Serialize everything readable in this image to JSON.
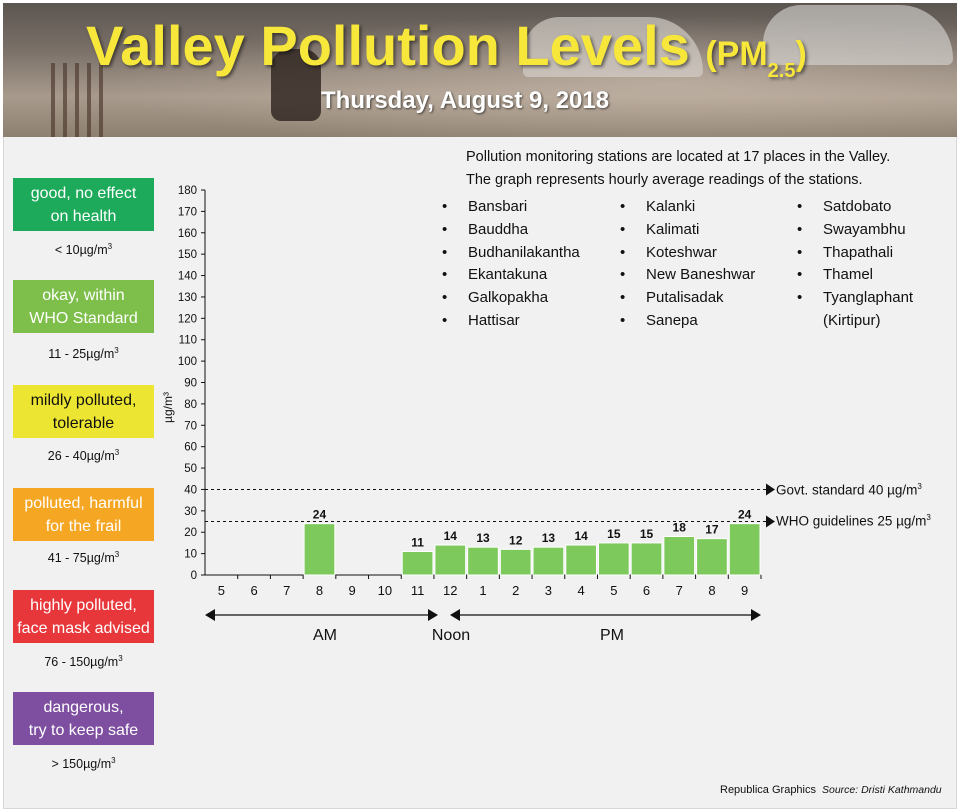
{
  "header": {
    "title": "Valley Pollution Levels",
    "pm_label": "(PM",
    "pm_sub": "2.5",
    "pm_close": ")",
    "date": "Thursday, August 9, 2018"
  },
  "legend": [
    {
      "label_line1": "good, no effect",
      "label_line2": "on health",
      "range": "< 10µg/m",
      "range_sup": "3",
      "color": "#1daa5b"
    },
    {
      "label_line1": "okay, within",
      "label_line2": "WHO Standard",
      "range": "11 - 25µg/m",
      "range_sup": "3",
      "color": "#7dbf4a"
    },
    {
      "label_line1": "mildly polluted,",
      "label_line2": "tolerable",
      "range": "26 - 40µg/m",
      "range_sup": "3",
      "color": "#ece531"
    },
    {
      "label_line1": "polluted, harmful",
      "label_line2": "for the frail",
      "range": "41 - 75µg/m",
      "range_sup": "3",
      "color": "#f5a623"
    },
    {
      "label_line1": "highly polluted,",
      "label_line2": "face mask advised",
      "range": "76 - 150µg/m",
      "range_sup": "3",
      "color": "#e8373b"
    },
    {
      "label_line1": "dangerous,",
      "label_line2": "try to keep safe",
      "range": "> 150µg/m",
      "range_sup": "3",
      "color": "#7e4fa0"
    }
  ],
  "info": {
    "line1": "Pollution monitoring stations are located at 17 places in the Valley.",
    "line2": "The graph represents hourly average readings of the stations."
  },
  "stations": {
    "col1": [
      "Bansbari",
      "Bauddha",
      "Budhanilakantha",
      "Ekantakuna",
      "Galkopakha",
      "Hattisar"
    ],
    "col2": [
      "Kalanki",
      "Kalimati",
      "Koteshwar",
      "New Baneshwar",
      "Putalisadak",
      "Sanepa"
    ],
    "col3": [
      "Satdobato",
      "Swayambhu",
      "Thapathali",
      "Thamel",
      "Tyanglaphant",
      "(Kirtipur)"
    ]
  },
  "bullet": "•",
  "references": {
    "govt": {
      "label": "Govt. standard",
      "value": "40 µg/m",
      "sup": "3"
    },
    "who": {
      "label": "WHO guidelines",
      "value": "25 µg/m",
      "sup": "3"
    }
  },
  "periods": {
    "am": "AM",
    "noon": "Noon",
    "pm": "PM"
  },
  "credit": {
    "by": "Republica Graphics",
    "source": "Source: Dristi Kathmandu"
  },
  "colors": {
    "bar": "#7dc95c",
    "bar_stroke": "#ffffff",
    "axis": "#111111"
  },
  "chart_data": {
    "type": "bar",
    "ylabel": "µg/m³",
    "ylim": [
      0,
      180
    ],
    "yticks": [
      0,
      10,
      20,
      30,
      40,
      50,
      60,
      70,
      80,
      90,
      100,
      110,
      120,
      130,
      140,
      150,
      160,
      170,
      180
    ],
    "categories": [
      "5",
      "6",
      "7",
      "8",
      "9",
      "10",
      "11",
      "12",
      "1",
      "2",
      "3",
      "4",
      "5",
      "6",
      "7",
      "8",
      "9"
    ],
    "values": [
      null,
      null,
      null,
      24,
      null,
      null,
      11,
      14,
      13,
      12,
      13,
      14,
      15,
      15,
      18,
      17,
      24
    ],
    "reference_lines": [
      {
        "label": "Govt. standard 40 µg/m³",
        "value": 40
      },
      {
        "label": "WHO guidelines 25 µg/m³",
        "value": 25
      }
    ],
    "grid": false
  }
}
